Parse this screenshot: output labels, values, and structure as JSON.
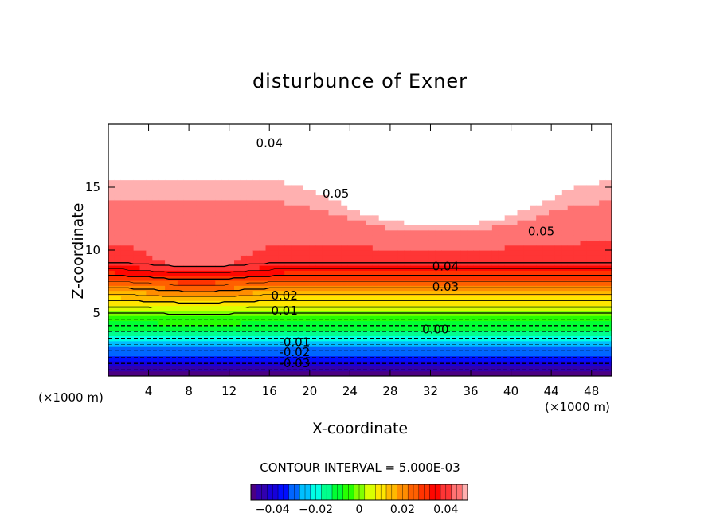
{
  "chart_data": {
    "type": "heatmap",
    "title": "disturbunce of Exner",
    "xlabel": "X-coordinate",
    "ylabel": "Z-coordinate",
    "x_unit_label": "(×1000 m)",
    "xlim": [
      0,
      50
    ],
    "ylim": [
      0,
      20
    ],
    "x_ticks": [
      4,
      8,
      12,
      16,
      20,
      24,
      28,
      32,
      36,
      40,
      44,
      48
    ],
    "y_ticks": [
      5,
      10,
      15
    ],
    "contour_interval_text": "CONTOUR INTERVAL = 5.000E-03",
    "contour_labels": [
      {
        "text": "0.04",
        "x": 16,
        "z": 18.5
      },
      {
        "text": "0.05",
        "x": 22.6,
        "z": 14.5
      },
      {
        "text": "0.05",
        "x": 43,
        "z": 11.5
      },
      {
        "text": "0.04",
        "x": 33.5,
        "z": 8.7
      },
      {
        "text": "0.03",
        "x": 33.5,
        "z": 7.1
      },
      {
        "text": "0.02",
        "x": 17.5,
        "z": 6.4
      },
      {
        "text": "0.01",
        "x": 17.5,
        "z": 5.2
      },
      {
        "text": "0.00",
        "x": 32.5,
        "z": 3.7
      },
      {
        "text": "-0.01",
        "x": 18.5,
        "z": 2.7
      },
      {
        "text": "-0.02",
        "x": 18.5,
        "z": 1.9
      },
      {
        "text": "-0.03",
        "x": 18.5,
        "z": 1.0
      }
    ],
    "colorbar": {
      "min": -0.05,
      "max": 0.05,
      "tick_values": [
        -0.04,
        -0.02,
        0,
        0.02,
        0.04
      ],
      "tick_labels": [
        "−0.04",
        "−0.02",
        "0",
        "0.02",
        "0.04"
      ],
      "colors": [
        "#4b0082",
        "#0000ff",
        "#00ffff",
        "#00ff00",
        "#ffff00",
        "#ff8000",
        "#ff0000",
        "#ffb0b0"
      ]
    }
  }
}
